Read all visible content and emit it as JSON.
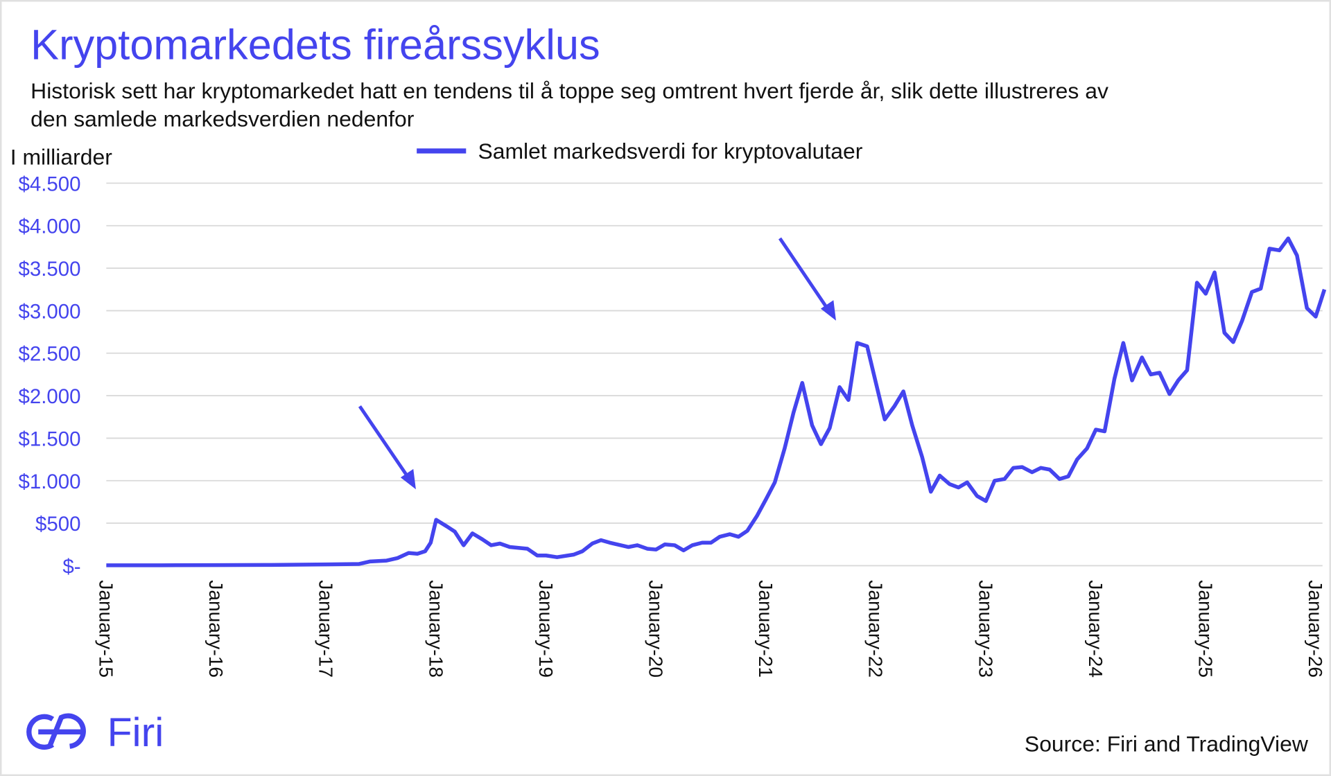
{
  "title": "Kryptomarkedets fireårssyklus",
  "subtitle_line1": "Historisk sett har kryptomarkedet hatt en tendens til å toppe seg omtrent hvert fjerde år, slik dette illustreres av",
  "subtitle_line2": "den samlede markedsverdien nedenfor",
  "source": "Source: Firi and TradingView",
  "logo_text": "Firi",
  "colors": {
    "accent": "#4444ee",
    "text": "#111111",
    "grid": "#d9d9d9"
  },
  "chart_data": {
    "type": "line",
    "title": "Kryptomarkedets fireårssyklus",
    "ylabel": "I milliarder",
    "xlabel": "",
    "ylim": [
      0,
      4500
    ],
    "xlim": [
      2015,
      2026.08
    ],
    "grid": true,
    "legend_position": "top-center",
    "yticks": [
      {
        "value": 0,
        "label": "$-"
      },
      {
        "value": 500,
        "label": "$500"
      },
      {
        "value": 1000,
        "label": "$1.000"
      },
      {
        "value": 1500,
        "label": "$1.500"
      },
      {
        "value": 2000,
        "label": "$2.000"
      },
      {
        "value": 2500,
        "label": "$2.500"
      },
      {
        "value": 3000,
        "label": "$3.000"
      },
      {
        "value": 3500,
        "label": "$3.500"
      },
      {
        "value": 4000,
        "label": "$4.000"
      },
      {
        "value": 4500,
        "label": "$4.500"
      }
    ],
    "xticks": [
      {
        "value": 2015,
        "label": "January-15"
      },
      {
        "value": 2016,
        "label": "January-16"
      },
      {
        "value": 2017,
        "label": "January-17"
      },
      {
        "value": 2018,
        "label": "January-18"
      },
      {
        "value": 2019,
        "label": "January-19"
      },
      {
        "value": 2020,
        "label": "January-20"
      },
      {
        "value": 2021,
        "label": "January-21"
      },
      {
        "value": 2022,
        "label": "January-22"
      },
      {
        "value": 2023,
        "label": "January-23"
      },
      {
        "value": 2024,
        "label": "January-24"
      },
      {
        "value": 2025,
        "label": "January-25"
      },
      {
        "value": 2026,
        "label": "January-26"
      }
    ],
    "series": [
      {
        "name": "Samlet markedsverdi for kryptovalutaer",
        "color": "#4444ee",
        "x": [
          2015,
          2015.5,
          2016,
          2016.5,
          2017,
          2017.3,
          2017.4,
          2017.55,
          2017.65,
          2017.75,
          2017.83,
          2017.9,
          2017.95,
          2018.0,
          2018.1,
          2018.17,
          2018.25,
          2018.33,
          2018.42,
          2018.5,
          2018.58,
          2018.67,
          2018.83,
          2018.92,
          2019.0,
          2019.1,
          2019.25,
          2019.33,
          2019.42,
          2019.5,
          2019.58,
          2019.75,
          2019.83,
          2019.92,
          2020.0,
          2020.08,
          2020.17,
          2020.25,
          2020.33,
          2020.42,
          2020.5,
          2020.58,
          2020.67,
          2020.75,
          2020.83,
          2020.92,
          2021.0,
          2021.08,
          2021.17,
          2021.25,
          2021.33,
          2021.42,
          2021.5,
          2021.58,
          2021.67,
          2021.75,
          2021.83,
          2021.92,
          2022.0,
          2022.08,
          2022.17,
          2022.25,
          2022.33,
          2022.42,
          2022.5,
          2022.58,
          2022.67,
          2022.75,
          2022.83,
          2022.92,
          2023.0,
          2023.08,
          2023.17,
          2023.25,
          2023.33,
          2023.42,
          2023.5,
          2023.58,
          2023.67,
          2023.75,
          2023.83,
          2023.92,
          2024.0,
          2024.08,
          2024.17,
          2024.25,
          2024.33,
          2024.42,
          2024.5,
          2024.58,
          2024.67,
          2024.75,
          2024.83,
          2024.92,
          2025.0,
          2025.08,
          2025.17,
          2025.25,
          2025.33,
          2025.42,
          2025.5,
          2025.58,
          2025.67,
          2025.75,
          2025.83,
          2025.92,
          2026.0,
          2026.08
        ],
        "values": [
          5,
          5,
          7,
          9,
          15,
          20,
          50,
          60,
          90,
          150,
          140,
          170,
          270,
          540,
          460,
          400,
          240,
          380,
          310,
          240,
          260,
          220,
          200,
          120,
          120,
          100,
          130,
          170,
          260,
          300,
          270,
          220,
          240,
          200,
          190,
          250,
          240,
          180,
          240,
          270,
          270,
          340,
          370,
          340,
          410,
          590,
          780,
          980,
          1380,
          1800,
          2150,
          1650,
          1430,
          1620,
          2100,
          1950,
          2620,
          2580,
          2150,
          1720,
          1880,
          2050,
          1650,
          1280,
          870,
          1060,
          960,
          920,
          980,
          820,
          760,
          1000,
          1020,
          1150,
          1160,
          1100,
          1150,
          1130,
          1020,
          1050,
          1250,
          1380,
          1600,
          1580,
          2200,
          2620,
          2180,
          2450,
          2250,
          2270,
          2020,
          2180,
          2300,
          3330,
          3200,
          3450,
          2740,
          2630,
          2880,
          3220,
          3260,
          3730,
          3710,
          3850,
          3650,
          3030,
          2930,
          3250
        ]
      }
    ],
    "annotations": [
      {
        "type": "arrow",
        "points_to_x": 2017.9
      },
      {
        "type": "arrow",
        "points_to_x": 2021.75
      }
    ]
  }
}
